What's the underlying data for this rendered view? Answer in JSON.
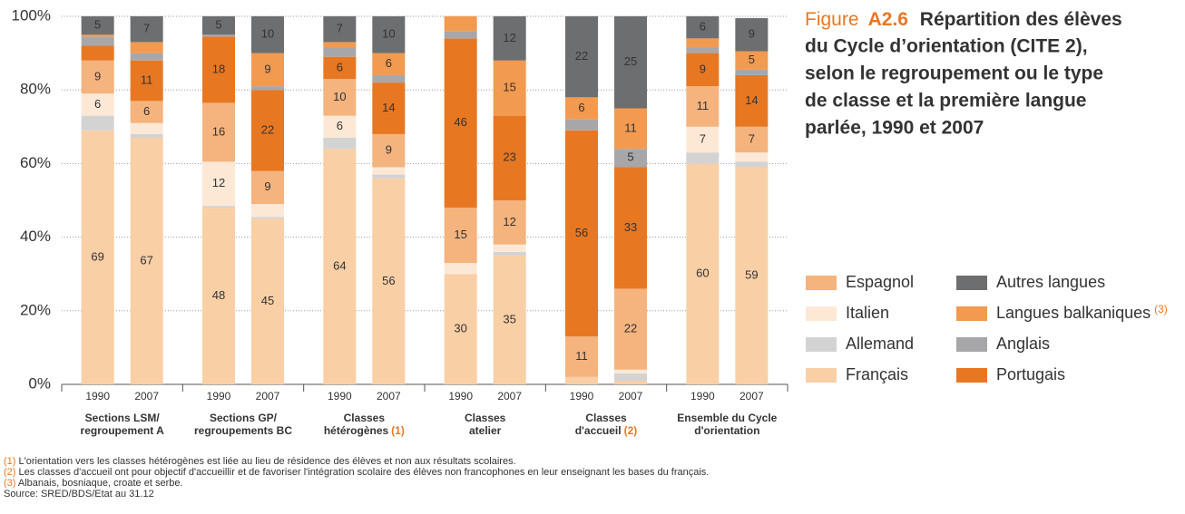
{
  "chart_data": {
    "type": "stacked_bar",
    "figure_label": "Figure",
    "figure_number": "A2.6",
    "title": [
      "Répartition des élèves",
      "du Cycle d’orientation (CITE 2),",
      "selon le regroupement ou le type",
      "de classe et la première langue",
      "parlée, 1990 et 2007"
    ],
    "categories": [
      "1990",
      "2007",
      "1990",
      "2007",
      "1990",
      "2007",
      "1990",
      "2007",
      "1990",
      "2007",
      "1990",
      "2007"
    ],
    "groups": [
      {
        "lines": [
          "Sections LSM/",
          "regroupement A"
        ]
      },
      {
        "lines": [
          "Sections GP/",
          "regroupements BC"
        ]
      },
      {
        "lines": [
          "Classes",
          "hétérogènes"
        ],
        "note": "(1)"
      },
      {
        "lines": [
          "Classes",
          "atelier"
        ]
      },
      {
        "lines": [
          "Classes",
          "d'accueil"
        ],
        "note": "(2)"
      },
      {
        "lines": [
          "Ensemble du Cycle",
          "d'orientation"
        ]
      }
    ],
    "ylim": [
      0,
      100
    ],
    "yticks": [
      {
        "value": 0,
        "label": "0%"
      },
      {
        "value": 20,
        "label": "20%"
      },
      {
        "value": 40,
        "label": "40%"
      },
      {
        "value": 60,
        "label": "60%"
      },
      {
        "value": 80,
        "label": "80%"
      },
      {
        "value": 100,
        "label": "100%"
      }
    ],
    "grid": true,
    "series": [
      {
        "name": "Français",
        "color": "#f9cfa6",
        "label_color": "#333333",
        "values": [
          69,
          67,
          48,
          45,
          64,
          56,
          30,
          35,
          2,
          1,
          60,
          59
        ],
        "value_labels": [
          "69",
          "67",
          "48",
          "45",
          "64",
          "56",
          "30",
          "35",
          null,
          null,
          "60",
          "59"
        ]
      },
      {
        "name": "Allemand",
        "color": "#d3d3d3",
        "label_color": "#333333",
        "values": [
          4,
          1,
          0.5,
          0.5,
          3,
          1,
          0,
          1,
          0,
          2,
          3,
          1.5
        ],
        "value_labels": [
          null,
          null,
          null,
          null,
          null,
          null,
          null,
          null,
          null,
          null,
          null,
          null
        ]
      },
      {
        "name": "Italien",
        "color": "#fde8d6",
        "label_color": "#333333",
        "values": [
          6,
          3,
          12,
          3.5,
          6,
          2,
          3,
          2,
          0,
          1,
          7,
          2.5
        ],
        "value_labels": [
          "6",
          null,
          "12",
          null,
          "6",
          null,
          null,
          null,
          null,
          null,
          "7",
          null
        ]
      },
      {
        "name": "Espagnol",
        "color": "#f5b37e",
        "label_color": "#333333",
        "values": [
          9,
          6,
          16,
          9,
          10,
          9,
          15,
          12,
          11,
          22,
          11,
          7
        ],
        "value_labels": [
          "9",
          "6",
          "16",
          "9",
          "10",
          "9",
          "15",
          "12",
          "11",
          "22",
          "11",
          "7"
        ]
      },
      {
        "name": "Portugais",
        "color": "#e87722",
        "label_color": "#ffffff",
        "values": [
          4,
          11,
          18,
          22,
          6,
          14,
          46,
          23,
          56,
          33,
          9,
          14
        ],
        "value_labels": [
          null,
          "11",
          "18",
          "22",
          "6",
          "14",
          "46",
          "23",
          "56",
          "33",
          "9",
          "14"
        ]
      },
      {
        "name": "Anglais",
        "color": "#a7a7a9",
        "label_color": "#ffffff",
        "values": [
          2.5,
          2,
          0.5,
          1,
          2.5,
          2,
          2,
          0,
          3,
          5,
          1.5,
          1.5
        ],
        "value_labels": [
          null,
          null,
          null,
          null,
          null,
          null,
          null,
          null,
          null,
          "5",
          null,
          null
        ]
      },
      {
        "name": "Langues balkaniques",
        "note": "(3)",
        "color": "#f29a50",
        "label_color": "#333333",
        "values": [
          0.5,
          3,
          0,
          9,
          1.5,
          6,
          4,
          15,
          6,
          11,
          2.5,
          5
        ],
        "value_labels": [
          null,
          null,
          null,
          "9",
          null,
          "6",
          null,
          "15",
          "6",
          "11",
          null,
          "5"
        ]
      },
      {
        "name": "Autres langues",
        "color": "#6d6e70",
        "label_color": "#ffffff",
        "values": [
          5,
          7,
          5,
          10,
          7,
          10,
          0,
          12,
          22,
          25,
          6,
          9
        ],
        "value_labels": [
          "5",
          "7",
          "5",
          "10",
          "7",
          "10",
          null,
          "12",
          "22",
          "25",
          "6",
          "9"
        ]
      }
    ],
    "footnotes": [
      {
        "marker": "(1)",
        "text": " L'orientation vers les classes hétérogènes est liée au lieu de résidence des élèves et non aux résultats scolaires."
      },
      {
        "marker": "(2)",
        "text": " Les classes d'accueil ont pour objectif d'accueillir et de favoriser l'intégration scolaire des élèves non francophones en leur enseignant les bases du français."
      },
      {
        "marker": "(3)",
        "text": " Albanais, bosniaque, croate et serbe."
      }
    ],
    "source": "Source: SRED/BDS/Etat au 31.12"
  }
}
